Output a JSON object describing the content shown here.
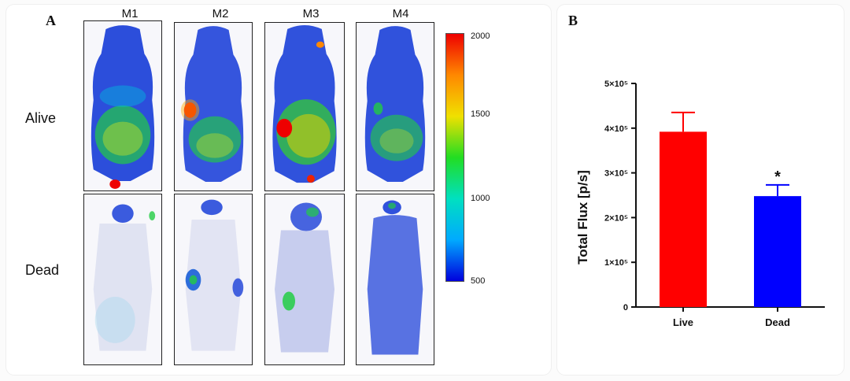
{
  "panel_a": {
    "letter": "A",
    "columns": [
      "M1",
      "M2",
      "M3",
      "M4"
    ],
    "rows": [
      "Alive",
      "Dead"
    ],
    "colorbar": {
      "max": "2000",
      "t1500": "1500",
      "t1000": "1000",
      "min": "500",
      "colors": [
        "#0000dd",
        "#00aaff",
        "#00e0c0",
        "#22dd22",
        "#f0e000",
        "#ff8800",
        "#ee0000"
      ]
    }
  },
  "panel_b": {
    "letter": "B"
  },
  "chart_data": {
    "type": "bar",
    "categories": [
      "Live",
      "Dead"
    ],
    "values": [
      392000,
      248000
    ],
    "errors": [
      43000,
      25000
    ],
    "colors": [
      "#ff0000",
      "#0000ff"
    ],
    "annotations": [
      "",
      "*"
    ],
    "ylabel": "Total Flux [p/s]",
    "ylim": [
      0,
      500000
    ],
    "yticks": [
      {
        "value": 0,
        "label": "0"
      },
      {
        "value": 100000,
        "label": "1×10⁵"
      },
      {
        "value": 200000,
        "label": "2×10⁵"
      },
      {
        "value": 300000,
        "label": "3×10⁵"
      },
      {
        "value": 400000,
        "label": "4×10⁵"
      },
      {
        "value": 500000,
        "label": "5×10⁵"
      }
    ]
  }
}
